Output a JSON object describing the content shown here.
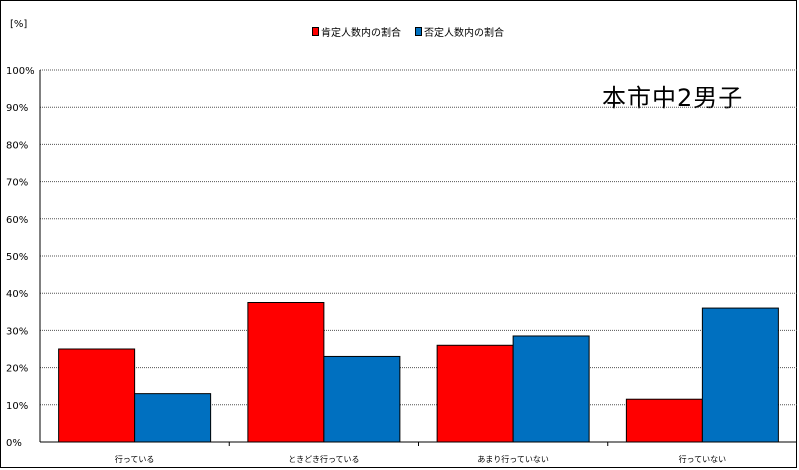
{
  "unit_label": "[%]",
  "subtitle": "本市中2男子",
  "colors": {
    "positive": "#ff0000",
    "negative": "#0070c0"
  },
  "chart_data": {
    "type": "bar",
    "categories": [
      "行っている",
      "ときどき行っている",
      "あまり行っていない",
      "行っていない"
    ],
    "series": [
      {
        "name": "肯定人数内の割合",
        "values": [
          25,
          37.5,
          26,
          11.5
        ]
      },
      {
        "name": "否定人数内の割合",
        "values": [
          13,
          23,
          28.5,
          36
        ]
      }
    ],
    "yticks": [
      "0%",
      "10%",
      "20%",
      "30%",
      "40%",
      "50%",
      "60%",
      "70%",
      "80%",
      "90%",
      "100%"
    ],
    "ylim": [
      0,
      100
    ],
    "grid": true,
    "legend_position": "top-center"
  }
}
